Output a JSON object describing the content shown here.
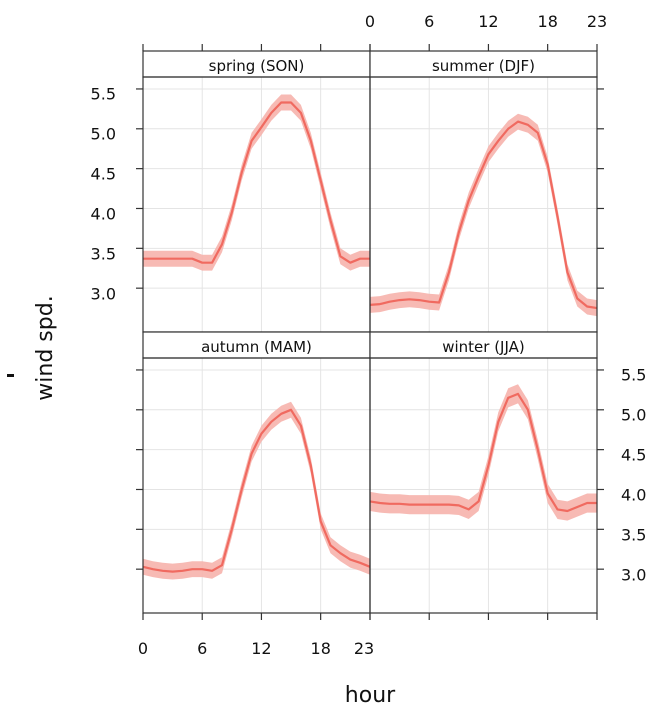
{
  "chart_data": {
    "type": "line",
    "xlabel": "hour",
    "ylabel": "wind spd.",
    "xlim": [
      0,
      23
    ],
    "ylim": [
      2.45,
      5.65
    ],
    "x_ticks": [
      0,
      6,
      12,
      18,
      23
    ],
    "y_ticks": [
      3.0,
      3.5,
      4.0,
      4.5,
      5.0,
      5.5
    ],
    "y_tick_labels": [
      "3.0",
      "3.5",
      "4.0",
      "4.5",
      "5.0",
      "5.5"
    ],
    "grid": true,
    "colors": {
      "line": "#f06a60",
      "band": "#f6b2ac",
      "grid": "#e4e4e4",
      "frame": "#333333"
    },
    "hours": [
      0,
      1,
      2,
      3,
      4,
      5,
      6,
      7,
      8,
      9,
      10,
      11,
      12,
      13,
      14,
      15,
      16,
      17,
      18,
      19,
      20,
      21,
      22,
      23
    ],
    "panels": [
      {
        "name": "spring (SON)",
        "values": [
          3.37,
          3.37,
          3.37,
          3.37,
          3.37,
          3.37,
          3.32,
          3.32,
          3.55,
          3.95,
          4.45,
          4.85,
          5.02,
          5.2,
          5.33,
          5.33,
          5.2,
          4.85,
          4.35,
          3.85,
          3.4,
          3.32,
          3.37,
          3.37
        ],
        "band": 0.1
      },
      {
        "name": "summer (DJF)",
        "values": [
          2.79,
          2.8,
          2.83,
          2.85,
          2.86,
          2.85,
          2.83,
          2.82,
          3.2,
          3.7,
          4.1,
          4.4,
          4.68,
          4.85,
          5.0,
          5.09,
          5.05,
          4.95,
          4.55,
          3.9,
          3.2,
          2.87,
          2.77,
          2.75
        ],
        "band": 0.1
      },
      {
        "name": "autumn (MAM)",
        "values": [
          3.03,
          3.0,
          2.98,
          2.97,
          2.98,
          3.0,
          3.0,
          2.98,
          3.05,
          3.5,
          4.0,
          4.45,
          4.7,
          4.85,
          4.95,
          5.0,
          4.8,
          4.3,
          3.6,
          3.3,
          3.2,
          3.12,
          3.08,
          3.03
        ],
        "band": 0.1
      },
      {
        "name": "winter (JJA)",
        "values": [
          3.85,
          3.83,
          3.82,
          3.82,
          3.81,
          3.81,
          3.81,
          3.81,
          3.81,
          3.8,
          3.75,
          3.85,
          4.3,
          4.85,
          5.15,
          5.2,
          5.0,
          4.5,
          3.95,
          3.75,
          3.73,
          3.78,
          3.83,
          3.83
        ],
        "band": 0.12
      }
    ]
  }
}
